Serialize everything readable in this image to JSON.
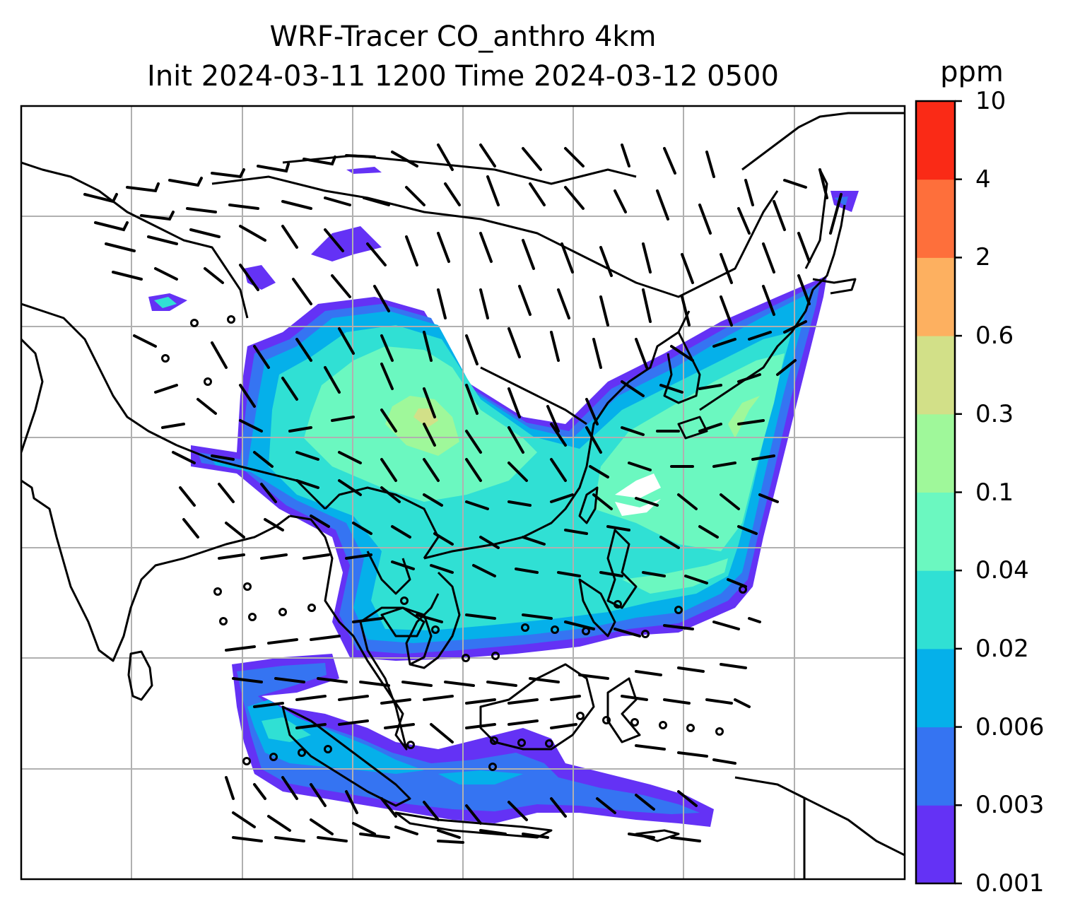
{
  "title": {
    "line1": "WRF-Tracer CO_anthro 4km",
    "line2": "Init 2024-03-11 1200 Time 2024-03-12 0500"
  },
  "colorbar": {
    "unit": "ppm",
    "levels": [
      "0.001",
      "0.003",
      "0.006",
      "0.02",
      "0.04",
      "0.1",
      "0.3",
      "0.6",
      "2",
      "4",
      "10"
    ],
    "colors": [
      "#6432f5",
      "#3574f2",
      "#05b0ea",
      "#30e0d4",
      "#6bf8c0",
      "#9ff89a",
      "#d2e088",
      "#fdb060",
      "#fe6f3b",
      "#fa2a16"
    ]
  },
  "map": {
    "coastline_color": "#000000",
    "gridline_color": "#b0b0b0",
    "barb_color": "#000000",
    "calm_marker": "circle"
  }
}
